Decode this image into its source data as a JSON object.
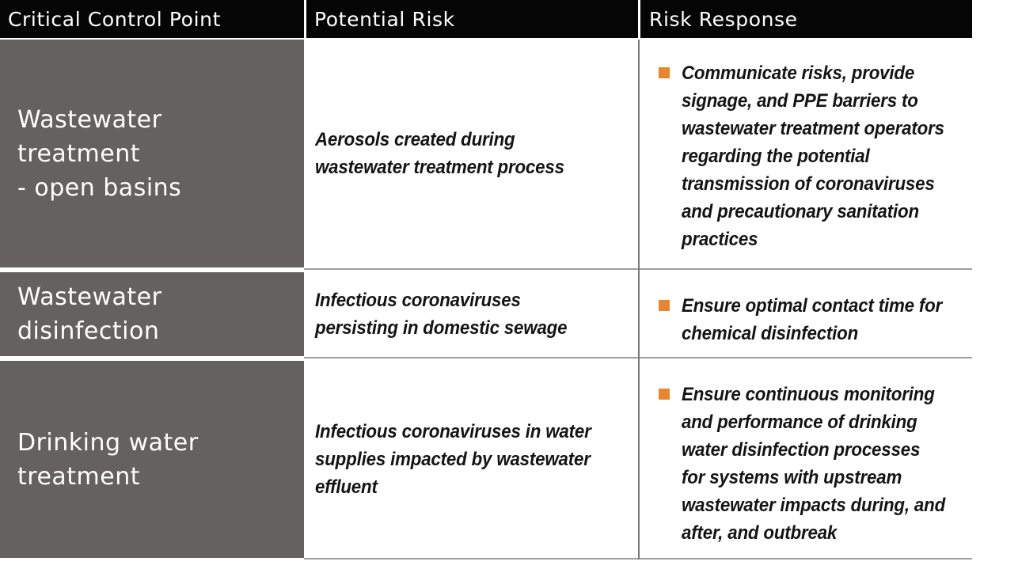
{
  "table": {
    "columns": [
      {
        "label": "Critical Control Point"
      },
      {
        "label": "Potential Risk"
      },
      {
        "label": "Risk Response"
      }
    ],
    "rows": [
      {
        "control_point": "Wastewater\ntreatment\n- open basins",
        "potential_risk": "Aerosols created during\nwastewater treatment process",
        "risk_response": "Communicate risks, provide\nsignage, and PPE barriers to\nwastewater treatment operators\nregarding the potential\ntransmission of coronaviruses\nand precautionary sanitation\npractices"
      },
      {
        "control_point": "Wastewater\ndisinfection",
        "potential_risk": "Infectious coronaviruses\npersisting in domestic sewage",
        "risk_response": "Ensure optimal contact time for\nchemical disinfection"
      },
      {
        "control_point": "Drinking water\ntreatment",
        "potential_risk": "Infectious coronaviruses in water\nsupplies impacted by wastewater\neffluent",
        "risk_response": "Ensure continuous monitoring\nand performance of drinking\nwater disinfection processes\nfor systems with upstream\nwastewater impacts during, and\nafter, and outbreak"
      }
    ],
    "colors": {
      "header_bg": "#050505",
      "header_text": "#ffffff",
      "control_point_bg": "#656160",
      "control_point_text": "#ffffff",
      "body_text": "#141414",
      "bullet": "#e8862f",
      "row_divider": "#9e9e9e",
      "column_divider": "#7b7877"
    }
  }
}
